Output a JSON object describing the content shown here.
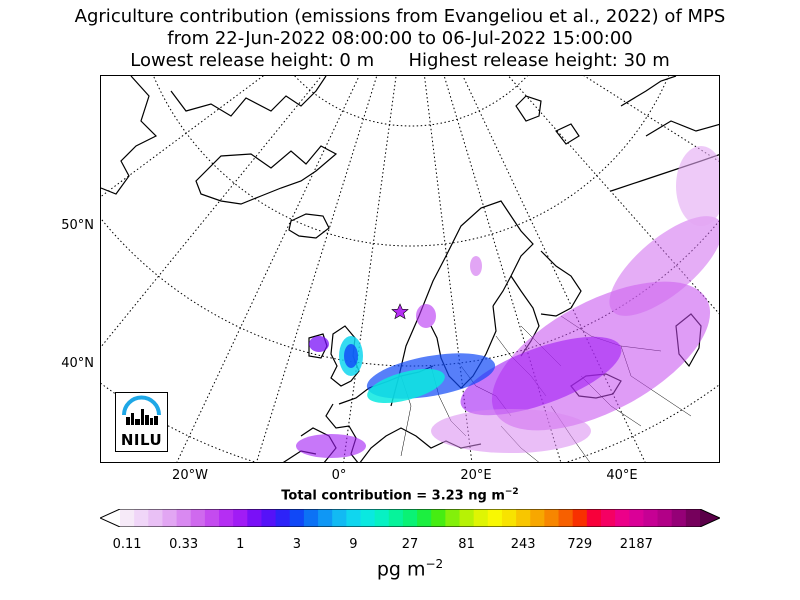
{
  "title": {
    "line1": "Agriculture contribution (emissions from Evangeliou et al., 2022) of MPS",
    "line2": "from 22-Jun-2022 08:00:00 to 06-Jul-2022 15:00:00",
    "line3": "Lowest release height: 0 m      Highest release height: 30 m"
  },
  "map": {
    "lat_labels": [
      "50°N",
      "40°N"
    ],
    "lon_labels": [
      "20°W",
      "0°",
      "20°E",
      "40°E"
    ],
    "release_site_icon": "star-icon",
    "logo_text": "NILU"
  },
  "total_contribution": {
    "prefix": "Total contribution = 3.23 ng m",
    "exponent": "−2"
  },
  "colorbar": {
    "tick_labels": [
      "0.11",
      "0.33",
      "1",
      "3",
      "9",
      "27",
      "81",
      "243",
      "729",
      "2187"
    ],
    "unit_base": "pg m",
    "unit_exponent": "−2",
    "colors": [
      "#f6eaf8",
      "#f0d6f8",
      "#e9c0f5",
      "#e2a6f3",
      "#d989f1",
      "#cf69ee",
      "#c44bef",
      "#b52ef3",
      "#a11cf5",
      "#7a10f7",
      "#5512f8",
      "#2d23f8",
      "#1048f7",
      "#0c72f5",
      "#0f97f5",
      "#12baf3",
      "#10d6ef",
      "#0ae9e0",
      "#07f1c3",
      "#06f39b",
      "#0af275",
      "#1cef40",
      "#46ed12",
      "#83f00a",
      "#b7f205",
      "#dff503",
      "#f9f802",
      "#f8e300",
      "#f8c600",
      "#f7a700",
      "#f78600",
      "#f76000",
      "#f83000",
      "#f8003a",
      "#f50063",
      "#ec0089",
      "#da0097",
      "#c60094",
      "#b20087",
      "#950077",
      "#76005c"
    ],
    "under_color": "#ffffff",
    "over_color": "#5a0048"
  }
}
